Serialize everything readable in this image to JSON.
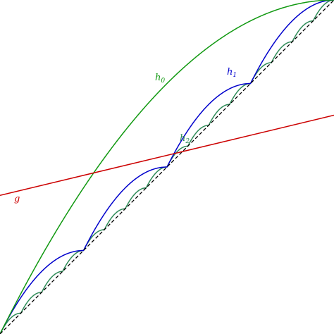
{
  "diagram": {
    "x_range": [
      0,
      1
    ],
    "y_range": [
      0,
      1
    ],
    "diagonal": {
      "slope": 1,
      "intercept": 0,
      "style": "dashed",
      "color": "#000000"
    },
    "curves": [
      {
        "id": "h0",
        "pieces": 1,
        "peak": 0.25,
        "color": "#119911"
      },
      {
        "id": "h1",
        "pieces": 4,
        "peak": 0.0625,
        "color": "#0000cc"
      },
      {
        "id": "h2",
        "pieces": 16,
        "peak": 0.015625,
        "color": "#2e8b57"
      }
    ],
    "line_g": {
      "y_at_x0": 0.415,
      "y_at_x1": 0.655,
      "color": "#cc0000"
    },
    "labels": {
      "h0": {
        "base": "h",
        "sub": "0",
        "color": "#119911"
      },
      "h1": {
        "base": "h",
        "sub": "1",
        "color": "#0000cc"
      },
      "h2": {
        "base": "h",
        "sub": "2",
        "color": "#2e8b57"
      },
      "g": {
        "text": "g",
        "color": "#cc0000"
      }
    }
  }
}
